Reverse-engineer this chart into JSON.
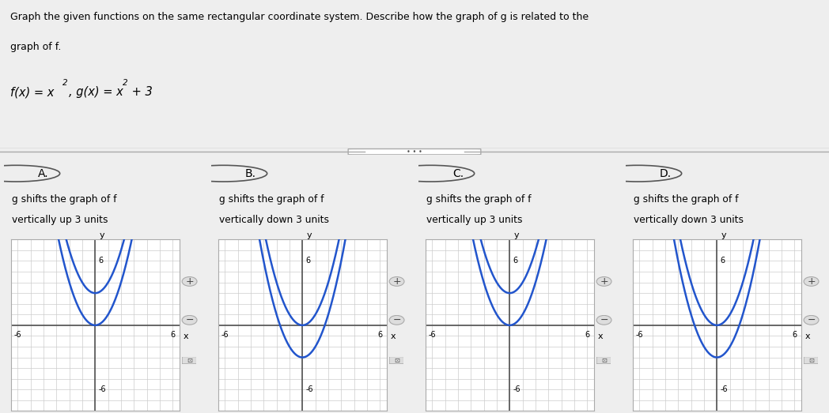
{
  "title_text": "Graph the given functions on the same rectangular coordinate system. Describe how the graph of g is related to the\ngraph of f.",
  "formula_line1": "f(x) = x",
  "formula_line2": ", g(x) = x",
  "options": [
    "A.",
    "B.",
    "C.",
    "D."
  ],
  "descriptions": [
    [
      "g shifts the graph of f",
      "vertically up 3 units"
    ],
    [
      "g shifts the graph of f",
      "vertically down 3 units"
    ],
    [
      "g shifts the graph of f",
      "vertically up 3 units"
    ],
    [
      "g shifts the graph of f",
      "vertically down 3 units"
    ]
  ],
  "graphs": [
    {
      "f_shift": 0,
      "g_shift": 3
    },
    {
      "f_shift": 0,
      "g_shift": -3
    },
    {
      "f_shift": 0,
      "g_shift": 3
    },
    {
      "f_shift": 0,
      "g_shift": -3
    }
  ],
  "xlim": [
    -6.5,
    6.5
  ],
  "ylim": [
    -8,
    8
  ],
  "grid_ticks": [
    -6,
    -5,
    -4,
    -3,
    -2,
    -1,
    0,
    1,
    2,
    3,
    4,
    5,
    6
  ],
  "tick_label_vals": [
    -6,
    6
  ],
  "y_tick_label_vals": [
    6,
    -6
  ],
  "curve_color": "#2255cc",
  "grid_color": "#cccccc",
  "axis_color": "#444444",
  "header_bg": "#f5f5f5",
  "panel_bg": "#eeeeee",
  "graph_bg": "#ffffff",
  "radio_color": "#555555",
  "separator_color": "#aaaaaa",
  "title_fontsize": 9.0,
  "formula_fontsize": 10.5,
  "option_fontsize": 10,
  "desc_fontsize": 8.8,
  "tick_fontsize": 7,
  "axis_label_fontsize": 8
}
